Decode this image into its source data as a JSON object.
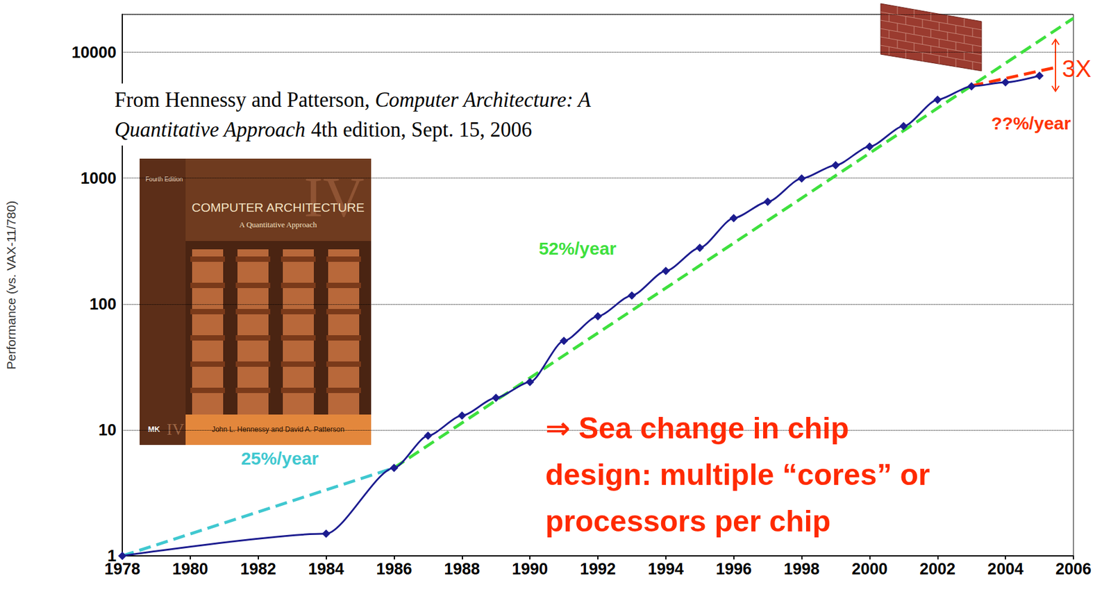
{
  "chart_data": {
    "type": "line",
    "source": {
      "author": "From Hennessy and Patterson,",
      "book": "Computer Architecture: A Quantitative Approach",
      "edition": "4th edition, Sept. 15, 2006"
    },
    "book_cover": {
      "edition": "Fourth Edition",
      "numeral": "IV",
      "title": "COMPUTER ARCHITECTURE",
      "subtitle": "A Quantitative Approach",
      "authors": "John L. Hennessy and David A. Patterson",
      "publisher": "MK"
    },
    "y_label": "Performance (vs. VAX-11/780)",
    "log": "y",
    "grid": true,
    "xlim": [
      1978,
      2006
    ],
    "xticks": [
      1978,
      1980,
      1982,
      1984,
      1986,
      1988,
      1990,
      1992,
      1994,
      1996,
      1998,
      2000,
      2002,
      2004,
      2006
    ],
    "ylim": [
      1,
      20000
    ],
    "yticks": [
      1,
      10,
      100,
      1000,
      10000
    ],
    "series": [
      {
        "type": "line",
        "color": "#1c1c8f",
        "marker": "diamond",
        "line_style": "solid",
        "x": [
          1978,
          1984,
          1986,
          1987,
          1988,
          1989,
          1990,
          1991,
          1992,
          1993,
          1994,
          1995,
          1996,
          1997,
          1998,
          1999,
          2000,
          2001,
          2002,
          2003,
          2004,
          2005
        ],
        "values": [
          1,
          1.5,
          5,
          9,
          13,
          18,
          24,
          51,
          80,
          117,
          183,
          280,
          481,
          649,
          993,
          1267,
          1779,
          2584,
          4195,
          5364,
          5764,
          6505
        ]
      },
      {
        "label": "25%/year",
        "color": "#40c8d0",
        "line_style": "dashed",
        "x": [
          1978,
          1986
        ],
        "values": [
          1,
          5
        ]
      },
      {
        "label": "52%/year",
        "color": "#3ee03e",
        "line_style": "dashed",
        "x": [
          1986,
          2006
        ],
        "values": [
          5,
          18600
        ]
      },
      {
        "label": "??%/year",
        "color": "#ff3300",
        "line_style": "dashed",
        "x": [
          2003,
          2005.5
        ],
        "values": [
          5400,
          7600
        ]
      }
    ],
    "annotations": [
      {
        "text": "3X",
        "color": "#ff3300"
      },
      {
        "text": "⇒ Sea change in chip design: multiple “cores” or processors per chip",
        "color": "#ff2a00"
      }
    ]
  }
}
